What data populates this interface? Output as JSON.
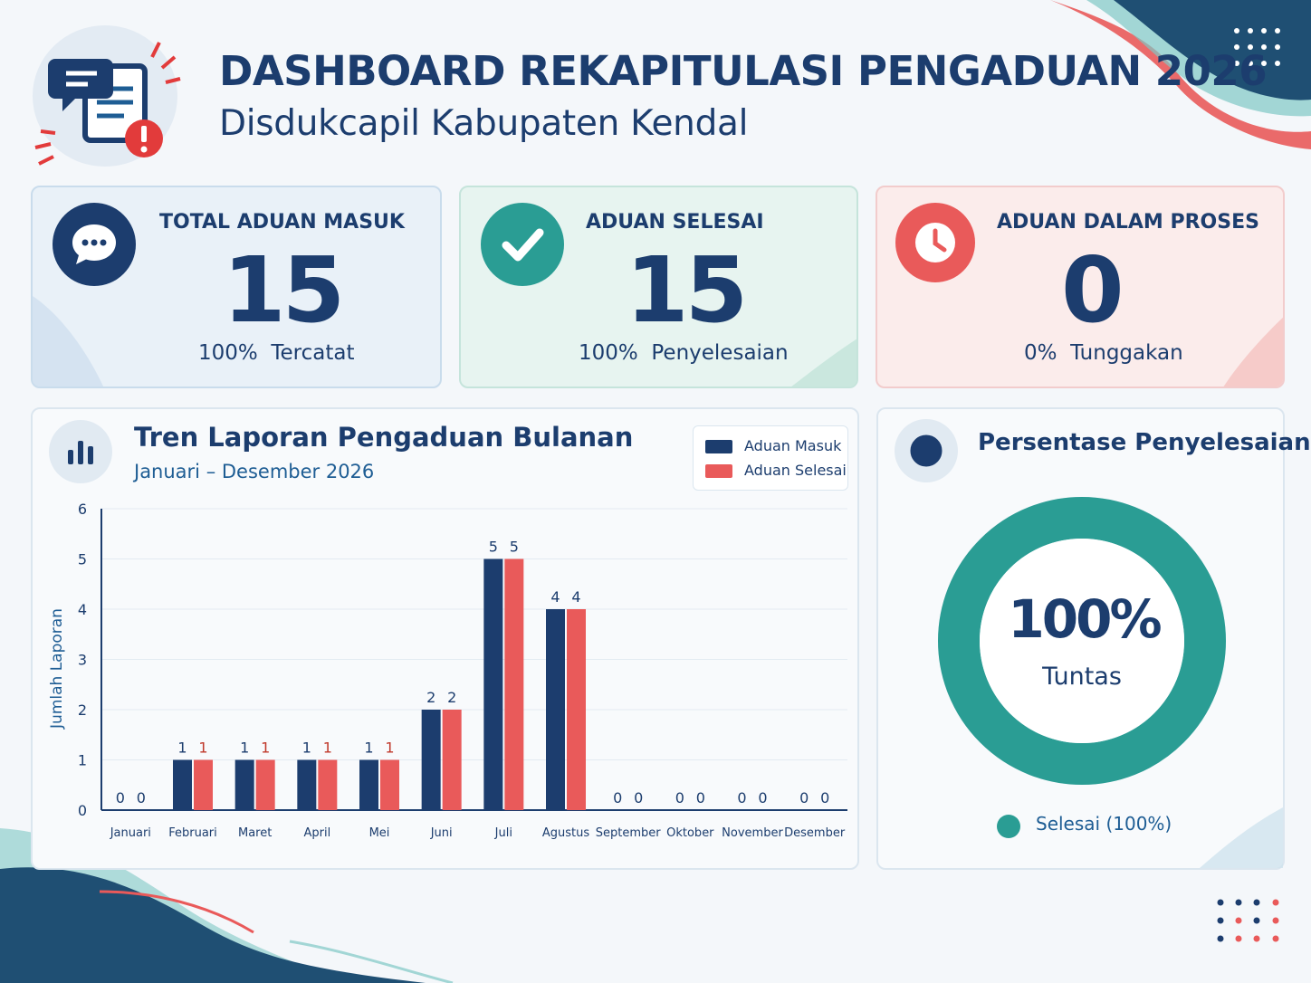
{
  "header": {
    "title": "DASHBOARD REKAPITULASI PENGADUAN 2026",
    "subtitle": "Disdukcapil Kabupaten Kendal"
  },
  "cards": [
    {
      "title": "TOTAL ADUAN MASUK",
      "value": "15",
      "subtitle": "100%  Tercatat",
      "icon": "chat-bubble-icon",
      "color": "#1c3d6e"
    },
    {
      "title": "ADUAN SELESAI",
      "value": "15",
      "subtitle": "100%  Penyelesaian",
      "icon": "check-icon",
      "color": "#2a9d94"
    },
    {
      "title": "ADUAN DALAM PROSES",
      "value": "0",
      "subtitle": "0%  Tunggakan",
      "icon": "clock-icon",
      "color": "#e95a5a"
    }
  ],
  "trend": {
    "title": "Tren Laporan Pengaduan Bulanan",
    "subtitle": "Januari – Desember 2026",
    "legend": [
      "Aduan Masuk",
      "Aduan Selesai"
    ]
  },
  "chart_data": {
    "type": "bar",
    "categories": [
      "Januari",
      "Februari",
      "Maret",
      "April",
      "Mei",
      "Juni",
      "Juli",
      "Agustus",
      "September",
      "Oktober",
      "November",
      "Desember"
    ],
    "series": [
      {
        "name": "Aduan Masuk",
        "color": "#1c3d6e",
        "values": [
          0,
          1,
          1,
          1,
          1,
          2,
          5,
          4,
          0,
          0,
          0,
          0
        ]
      },
      {
        "name": "Aduan Selesai",
        "color": "#e95a5a",
        "values": [
          0,
          1,
          1,
          1,
          1,
          2,
          5,
          4,
          0,
          0,
          0,
          0
        ]
      }
    ],
    "ylabel": "Jumlah Laporan",
    "ylim": [
      0,
      6
    ],
    "yticks": [
      0,
      1,
      2,
      3,
      4,
      5,
      6
    ],
    "grid": true,
    "legend_position": "top-right",
    "data_labels": true
  },
  "pie": {
    "title": "Persentase Penyelesaian",
    "center_value": "100%",
    "center_label": "Tuntas",
    "legend": "Selesai (100%)",
    "percent": 100,
    "color": "#2a9d94"
  },
  "colors": {
    "navy": "#1c3d6e",
    "teal": "#2a9d94",
    "coral": "#e95a5a"
  }
}
